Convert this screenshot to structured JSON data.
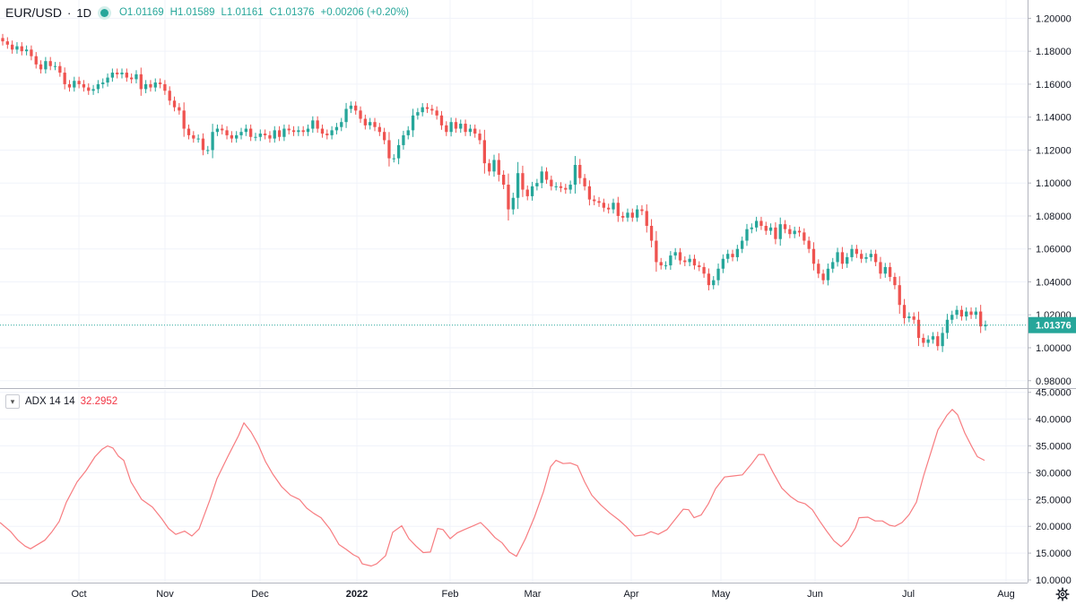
{
  "legend": {
    "symbol": "EUR/USD",
    "separator": "·",
    "timeframe": "1D",
    "open": "O1.01169",
    "high": "H1.01589",
    "low": "L1.01161",
    "close": "C1.01376",
    "change": "+0.00206 (+0.20%)"
  },
  "adx_legend": {
    "name": "ADX 14 14",
    "value": "32.2952"
  },
  "colors": {
    "up": "#26a69a",
    "down": "#ef5350",
    "adx_line": "#f77c80",
    "last_price_label": "#26a69a",
    "grid": "#f0f3fa"
  },
  "icons": {
    "collapse": "chevron-down-icon",
    "settings": "gear-icon"
  },
  "chart_data": [
    {
      "type": "candlestick",
      "title": "EUR/USD · 1D",
      "x_ticks": [
        "Oct",
        "Nov",
        "Dec",
        "2022",
        "Feb",
        "Mar",
        "Apr",
        "May",
        "Jun",
        "Jul",
        "Aug"
      ],
      "y_ticks": [
        "0.98000",
        "1.00000",
        "1.02000",
        "1.04000",
        "1.06000",
        "1.08000",
        "1.10000",
        "1.12000",
        "1.14000",
        "1.16000",
        "1.18000",
        "1.20000"
      ],
      "ylim": [
        0.977,
        1.202
      ],
      "last_price": 1.01376,
      "last_price_label": "1.01376",
      "grid": true,
      "closes": [
        1.186,
        1.184,
        1.181,
        1.183,
        1.18,
        1.181,
        1.177,
        1.172,
        1.169,
        1.174,
        1.171,
        1.171,
        1.167,
        1.16,
        1.158,
        1.162,
        1.16,
        1.158,
        1.156,
        1.157,
        1.16,
        1.161,
        1.164,
        1.167,
        1.166,
        1.167,
        1.164,
        1.163,
        1.166,
        1.157,
        1.16,
        1.158,
        1.161,
        1.16,
        1.156,
        1.15,
        1.146,
        1.144,
        1.133,
        1.129,
        1.127,
        1.127,
        1.12,
        1.12,
        1.131,
        1.133,
        1.132,
        1.129,
        1.127,
        1.129,
        1.131,
        1.133,
        1.128,
        1.128,
        1.13,
        1.129,
        1.127,
        1.132,
        1.128,
        1.133,
        1.132,
        1.131,
        1.132,
        1.131,
        1.133,
        1.138,
        1.133,
        1.13,
        1.129,
        1.132,
        1.134,
        1.137,
        1.145,
        1.147,
        1.144,
        1.139,
        1.135,
        1.137,
        1.134,
        1.131,
        1.126,
        1.115,
        1.115,
        1.123,
        1.129,
        1.132,
        1.141,
        1.143,
        1.146,
        1.145,
        1.144,
        1.141,
        1.135,
        1.131,
        1.137,
        1.133,
        1.136,
        1.131,
        1.133,
        1.13,
        1.126,
        1.112,
        1.107,
        1.114,
        1.105,
        1.099,
        1.084,
        1.091,
        1.106,
        1.096,
        1.092,
        1.098,
        1.1,
        1.107,
        1.102,
        1.098,
        1.098,
        1.097,
        1.096,
        1.099,
        1.111,
        1.103,
        1.098,
        1.09,
        1.089,
        1.088,
        1.085,
        1.084,
        1.088,
        1.08,
        1.079,
        1.082,
        1.079,
        1.084,
        1.083,
        1.074,
        1.065,
        1.052,
        1.05,
        1.05,
        1.056,
        1.058,
        1.053,
        1.052,
        1.054,
        1.05,
        1.049,
        1.045,
        1.038,
        1.041,
        1.048,
        1.054,
        1.057,
        1.055,
        1.06,
        1.065,
        1.072,
        1.073,
        1.077,
        1.074,
        1.071,
        1.073,
        1.066,
        1.075,
        1.072,
        1.069,
        1.071,
        1.07,
        1.065,
        1.06,
        1.051,
        1.045,
        1.041,
        1.048,
        1.052,
        1.058,
        1.051,
        1.055,
        1.06,
        1.057,
        1.054,
        1.055,
        1.057,
        1.052,
        1.045,
        1.049,
        1.043,
        1.038,
        1.026,
        1.018,
        1.019,
        1.017,
        1.006,
        1.003,
        1.005,
        1.007,
        1.001,
        1.009,
        1.017,
        1.02,
        1.023,
        1.019,
        1.022,
        1.02,
        1.022,
        1.013,
        1.014
      ]
    },
    {
      "type": "line",
      "title": "ADX 14 14",
      "x_ticks": [
        "Oct",
        "Nov",
        "Dec",
        "2022",
        "Feb",
        "Mar",
        "Apr",
        "May",
        "Jun",
        "Jul",
        "Aug"
      ],
      "y_ticks": [
        "10.0000",
        "15.0000",
        "20.0000",
        "25.0000",
        "30.0000",
        "35.0000",
        "40.0000",
        "45.0000"
      ],
      "ylim": [
        10,
        45
      ],
      "series": [
        {
          "name": "ADX 14 14",
          "last_value": 32.2952,
          "points": [
            [
              0,
              20.7
            ],
            [
              12,
              19
            ],
            [
              20,
              17.4
            ],
            [
              28,
              16.3
            ],
            [
              34,
              15.8
            ],
            [
              40,
              16.4
            ],
            [
              50,
              17.4
            ],
            [
              58,
              19.0
            ],
            [
              66,
              20.9
            ],
            [
              74,
              24.5
            ],
            [
              86,
              28.3
            ],
            [
              96,
              30.4
            ],
            [
              106,
              33.0
            ],
            [
              114,
              34.4
            ],
            [
              120,
              35.0
            ],
            [
              126,
              34.6
            ],
            [
              132,
              33.1
            ],
            [
              138,
              32.3
            ],
            [
              146,
              28.3
            ],
            [
              158,
              25.0
            ],
            [
              170,
              23.6
            ],
            [
              180,
              21.5
            ],
            [
              188,
              19.6
            ],
            [
              196,
              18.5
            ],
            [
              206,
              19.1
            ],
            [
              214,
              18.2
            ],
            [
              222,
              19.5
            ],
            [
              234,
              24.9
            ],
            [
              242,
              28.9
            ],
            [
              254,
              33.0
            ],
            [
              266,
              36.9
            ],
            [
              272,
              39.3
            ],
            [
              280,
              37.6
            ],
            [
              288,
              35.2
            ],
            [
              296,
              32.1
            ],
            [
              304,
              29.8
            ],
            [
              314,
              27.4
            ],
            [
              324,
              25.8
            ],
            [
              334,
              25.0
            ],
            [
              342,
              23.4
            ],
            [
              350,
              22.4
            ],
            [
              358,
              21.6
            ],
            [
              368,
              19.5
            ],
            [
              378,
              16.6
            ],
            [
              386,
              15.7
            ],
            [
              394,
              14.7
            ],
            [
              400,
              14.2
            ],
            [
              404,
              13.0
            ],
            [
              414,
              12.6
            ],
            [
              420,
              13.0
            ],
            [
              430,
              14.5
            ],
            [
              438,
              18.9
            ],
            [
              448,
              20.1
            ],
            [
              456,
              17.7
            ],
            [
              464,
              16.3
            ],
            [
              472,
              15.1
            ],
            [
              480,
              15.2
            ],
            [
              488,
              19.6
            ],
            [
              494,
              19.4
            ],
            [
              502,
              17.7
            ],
            [
              510,
              18.8
            ],
            [
              518,
              19.4
            ],
            [
              528,
              20.1
            ],
            [
              536,
              20.7
            ],
            [
              544,
              19.4
            ],
            [
              552,
              17.9
            ],
            [
              560,
              16.9
            ],
            [
              568,
              15.2
            ],
            [
              576,
              14.4
            ],
            [
              586,
              17.7
            ],
            [
              596,
              21.7
            ],
            [
              606,
              26.4
            ],
            [
              614,
              31.1
            ],
            [
              620,
              32.3
            ],
            [
              628,
              31.7
            ],
            [
              636,
              31.8
            ],
            [
              644,
              31.3
            ],
            [
              652,
              28.3
            ],
            [
              660,
              25.8
            ],
            [
              670,
              24.0
            ],
            [
              680,
              22.5
            ],
            [
              690,
              21.2
            ],
            [
              698,
              20.0
            ],
            [
              708,
              18.2
            ],
            [
              718,
              18.4
            ],
            [
              726,
              19.0
            ],
            [
              734,
              18.5
            ],
            [
              744,
              19.4
            ],
            [
              752,
              21.1
            ],
            [
              762,
              23.2
            ],
            [
              768,
              23.1
            ],
            [
              774,
              21.6
            ],
            [
              782,
              22.1
            ],
            [
              790,
              24.2
            ],
            [
              798,
              27.0
            ],
            [
              808,
              29.2
            ],
            [
              818,
              29.4
            ],
            [
              828,
              29.6
            ],
            [
              838,
              31.6
            ],
            [
              846,
              33.4
            ],
            [
              852,
              33.4
            ],
            [
              862,
              30.1
            ],
            [
              872,
              27.1
            ],
            [
              882,
              25.5
            ],
            [
              890,
              24.6
            ],
            [
              898,
              24.2
            ],
            [
              906,
              23.1
            ],
            [
              914,
              21.0
            ],
            [
              922,
              19.1
            ],
            [
              930,
              17.3
            ],
            [
              938,
              16.2
            ],
            [
              946,
              17.4
            ],
            [
              954,
              19.7
            ],
            [
              958,
              21.6
            ],
            [
              968,
              21.7
            ],
            [
              976,
              21.0
            ],
            [
              984,
              21.0
            ],
            [
              992,
              20.2
            ],
            [
              998,
              20.0
            ],
            [
              1006,
              20.7
            ],
            [
              1014,
              22.2
            ],
            [
              1022,
              24.5
            ],
            [
              1030,
              29.4
            ],
            [
              1038,
              33.7
            ],
            [
              1046,
              38.0
            ],
            [
              1056,
              40.7
            ],
            [
              1062,
              41.8
            ],
            [
              1068,
              40.8
            ],
            [
              1076,
              37.4
            ],
            [
              1084,
              34.8
            ],
            [
              1090,
              33.0
            ],
            [
              1098,
              32.3
            ]
          ]
        }
      ]
    }
  ]
}
